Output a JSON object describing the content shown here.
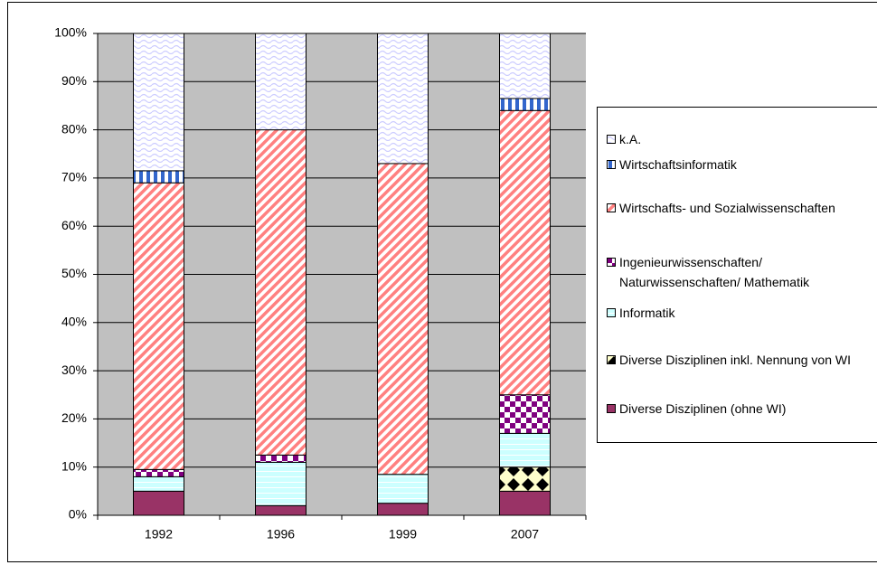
{
  "chart_data": {
    "type": "stacked_bar_percent",
    "categories": [
      "1992",
      "1996",
      "1999",
      "2007"
    ],
    "series": [
      {
        "name": "Diverse Disziplinen (ohne WI)",
        "color": "#993366",
        "values": [
          5,
          2,
          2.5,
          5
        ]
      },
      {
        "name": "Diverse Disziplinen inkl. Nennung von WI",
        "color": "#000000",
        "values": [
          0,
          0,
          0,
          5
        ]
      },
      {
        "name": "Informatik",
        "color": "#ccffff",
        "values": [
          3,
          9,
          6,
          7
        ]
      },
      {
        "name": "Ingenieurwissenschaften/ Naturwissenschaften/ Mathematik",
        "color": "#800080",
        "values": [
          1.5,
          1.5,
          0,
          8
        ]
      },
      {
        "name": "Wirtschafts- und Sozialwissenschaften",
        "color": "#ff8080",
        "values": [
          59.5,
          67.5,
          64.5,
          59
        ]
      },
      {
        "name": "Wirtschaftsinformatik",
        "color": "#3366cc",
        "values": [
          2.5,
          0,
          0,
          2.5
        ]
      },
      {
        "name": "k.A.",
        "color": "#ccccff",
        "values": [
          28.5,
          20,
          27,
          13.5
        ]
      }
    ],
    "ylim": [
      0,
      100
    ],
    "yticks": [
      {
        "value": 0,
        "label": "0%"
      },
      {
        "value": 10,
        "label": "10%"
      },
      {
        "value": 20,
        "label": "20%"
      },
      {
        "value": 30,
        "label": "30%"
      },
      {
        "value": 40,
        "label": "40%"
      },
      {
        "value": 50,
        "label": "50%"
      },
      {
        "value": 60,
        "label": "60%"
      },
      {
        "value": 70,
        "label": "70%"
      },
      {
        "value": 80,
        "label": "80%"
      },
      {
        "value": 90,
        "label": "90%"
      },
      {
        "value": 100,
        "label": "100%"
      }
    ],
    "grid": true,
    "legend": "right"
  }
}
